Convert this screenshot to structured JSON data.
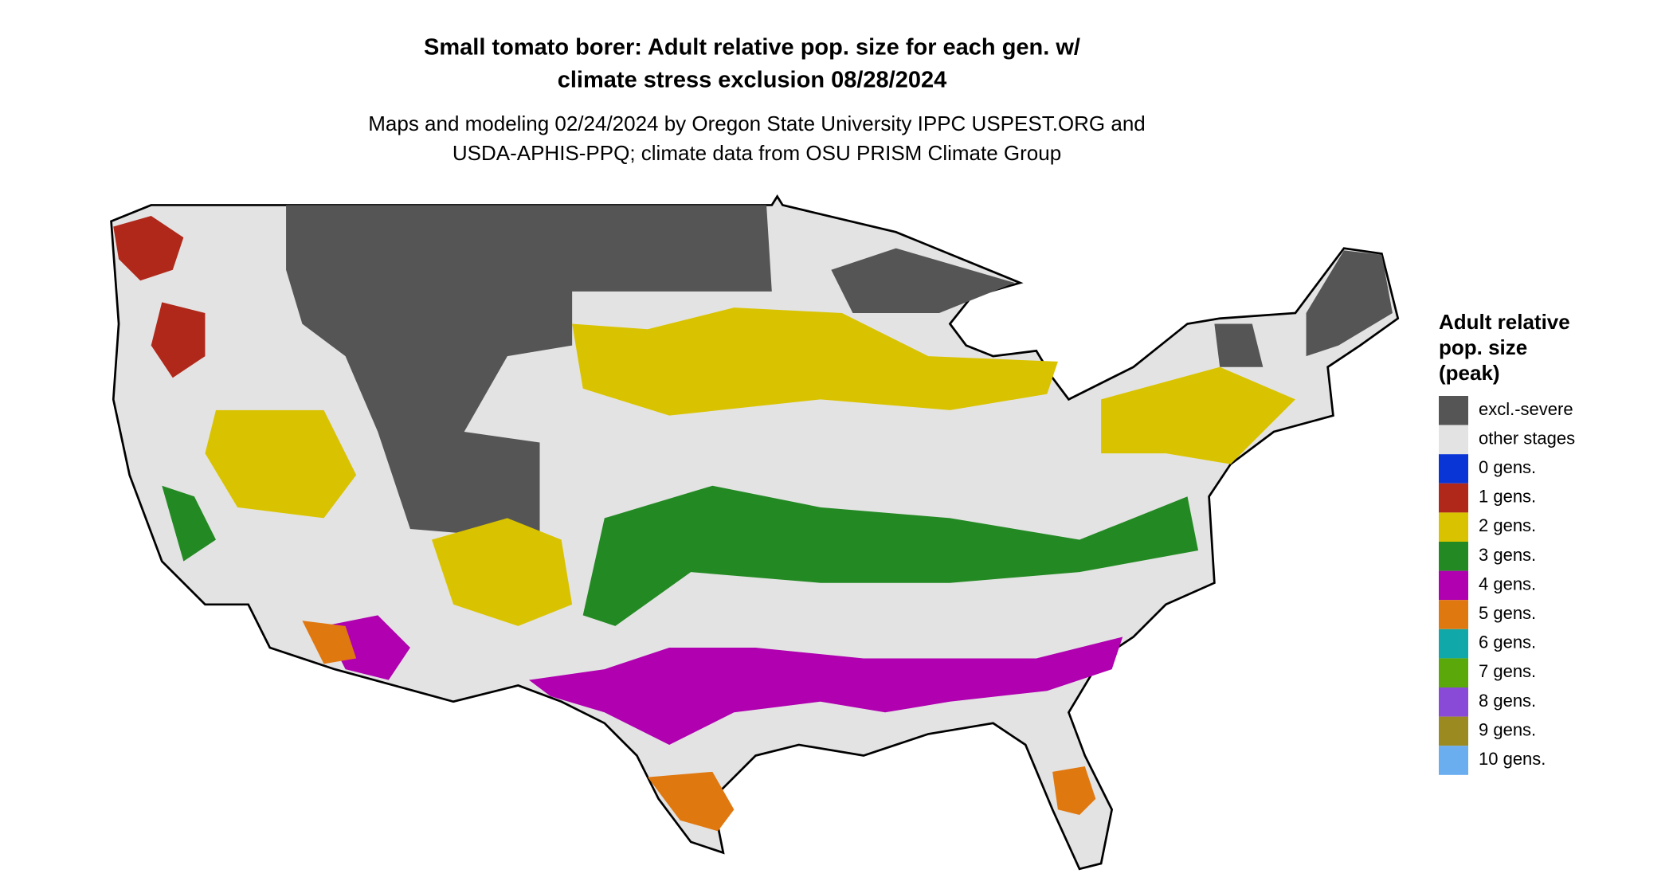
{
  "header": {
    "title": [
      "Small tomato borer: Adult relative pop. size for each gen. w/",
      "climate stress exclusion 08/28/2024"
    ],
    "subtitle": [
      "Maps and modeling 02/24/2024 by Oregon State University IPPC USPEST.ORG and",
      "USDA-APHIS-PPQ; climate data from OSU PRISM Climate Group"
    ]
  },
  "legend": {
    "title": [
      "Adult relative",
      "pop. size",
      "(peak)"
    ],
    "items": [
      {
        "label": "excl.-severe",
        "color": "#555555"
      },
      {
        "label": "other stages",
        "color": "#e3e3e3"
      },
      {
        "label": "0 gens.",
        "color": "#0a35d6"
      },
      {
        "label": "1 gens.",
        "color": "#b0281a"
      },
      {
        "label": "2 gens.",
        "color": "#d9c300"
      },
      {
        "label": "3 gens.",
        "color": "#238a23"
      },
      {
        "label": "4 gens.",
        "color": "#b000b0"
      },
      {
        "label": "5 gens.",
        "color": "#e07810"
      },
      {
        "label": "6 gens.",
        "color": "#10a8a8"
      },
      {
        "label": "7 gens.",
        "color": "#5aa80a"
      },
      {
        "label": "8 gens.",
        "color": "#8a4ad8"
      },
      {
        "label": "9 gens.",
        "color": "#9a8a20"
      },
      {
        "label": "10 gens.",
        "color": "#6aaef0"
      }
    ]
  }
}
